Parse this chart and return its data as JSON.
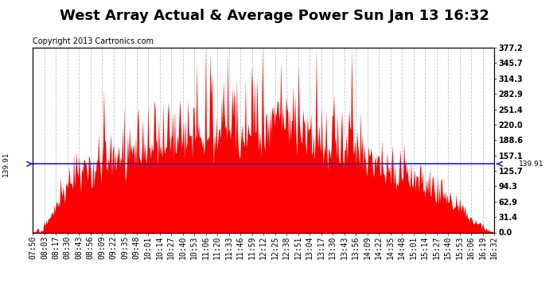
{
  "title": "West Array Actual & Average Power Sun Jan 13 16:32",
  "copyright": "Copyright 2013 Cartronics.com",
  "avg_value": 139.91,
  "ymax": 377.2,
  "yticks": [
    0.0,
    31.4,
    62.9,
    94.3,
    125.7,
    157.1,
    188.6,
    220.0,
    251.4,
    282.9,
    314.3,
    345.7,
    377.2
  ],
  "background_color": "#ffffff",
  "plot_bg_color": "#ffffff",
  "grid_color": "#bbbbbb",
  "area_color": "#ff0000",
  "avg_line_color": "#2222bb",
  "legend_avg_bg": "#2222bb",
  "legend_west_bg": "#dd0000",
  "xtick_labels": [
    "07:50",
    "08:03",
    "08:17",
    "08:30",
    "08:43",
    "08:56",
    "09:09",
    "09:22",
    "09:35",
    "09:48",
    "10:01",
    "10:14",
    "10:27",
    "10:40",
    "10:53",
    "11:06",
    "11:20",
    "11:33",
    "11:46",
    "11:59",
    "12:12",
    "12:25",
    "12:38",
    "12:51",
    "13:04",
    "13:17",
    "13:30",
    "13:43",
    "13:56",
    "14:09",
    "14:22",
    "14:35",
    "14:48",
    "15:01",
    "15:14",
    "15:27",
    "15:40",
    "15:53",
    "16:06",
    "16:19",
    "16:32"
  ],
  "title_fontsize": 13,
  "tick_fontsize": 7,
  "copyright_fontsize": 7,
  "legend_fontsize": 7.5
}
